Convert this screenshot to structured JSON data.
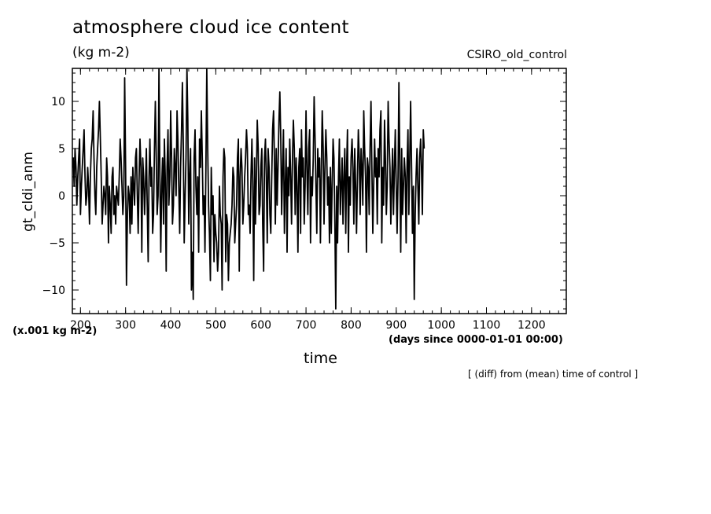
{
  "chart_data": {
    "type": "line",
    "title": "atmosphere cloud ice content",
    "units_label": "(kg m-2)",
    "source_label": "CSIRO_old_control",
    "xlabel": "time",
    "ylabel": "gt_cldi_anm",
    "y_scale_note": "(x.001 kg m-2)",
    "x_units_note": "(days since 0000-01-01 00:00)",
    "footnote": "[ (diff) from (mean) time of control ]",
    "xlim": [
      182,
      1277
    ],
    "ylim": [
      -12.5,
      13.5
    ],
    "xticks": [
      200,
      300,
      400,
      500,
      600,
      700,
      800,
      900,
      1000,
      1100,
      1200
    ],
    "yticks": [
      -10,
      -5,
      0,
      5,
      10
    ],
    "grid": false,
    "line_color": "#000000",
    "series": [
      {
        "x_start": 182,
        "x_step": 2,
        "values": [
          3,
          4,
          1,
          5,
          3,
          -1,
          2,
          4,
          6,
          -2,
          1,
          3,
          5,
          7,
          2,
          -1,
          0,
          3,
          1,
          -3,
          2,
          5,
          6,
          9,
          4,
          0,
          -2,
          3,
          5,
          7,
          10,
          6,
          2,
          -3,
          -1,
          1,
          0,
          -2,
          4,
          2,
          -5,
          1,
          -1,
          -4,
          2,
          3,
          -2,
          0,
          -3,
          1,
          0,
          -1,
          2,
          6,
          4,
          1,
          -2,
          0,
          12.5,
          3,
          -9.5,
          -2,
          1,
          0,
          -4,
          2,
          -3,
          3,
          1,
          -1,
          4,
          5,
          0,
          -4,
          2,
          6,
          3,
          -6,
          4,
          2,
          -2,
          1,
          5,
          -1,
          -7,
          2,
          6,
          1,
          3,
          -4,
          -2,
          5,
          10,
          4,
          -2,
          0,
          13.5,
          2,
          -6,
          1,
          4,
          -3,
          6,
          2,
          -8,
          3,
          7,
          -1,
          2,
          9,
          4,
          -3,
          -1,
          5,
          3,
          0,
          9,
          6,
          1,
          -4,
          3,
          7,
          12,
          5,
          -5,
          0,
          4,
          13.5,
          8,
          -3,
          2,
          5,
          -10,
          -6,
          -11,
          4,
          7,
          1,
          -2,
          2,
          -6,
          6,
          3,
          9,
          4,
          -2,
          0,
          -6,
          3,
          13.5,
          5,
          -1,
          -4,
          -9,
          3,
          -2,
          0,
          -7,
          -2,
          -4,
          -5,
          -8,
          -6,
          1,
          -2,
          -3,
          -10,
          2,
          5,
          4,
          -7,
          -2,
          -3,
          -9,
          -5,
          -4,
          -3,
          -1,
          3,
          2,
          -5,
          -3,
          -1,
          4,
          6,
          -8,
          2,
          5,
          3,
          -3,
          -1,
          2,
          4,
          7,
          5,
          -2,
          -1,
          -4,
          2,
          6,
          1,
          -9,
          4,
          -3,
          2,
          8,
          5,
          -2,
          -1,
          3,
          5,
          -3,
          -8,
          4,
          6,
          2,
          -5,
          5,
          3,
          -2,
          -4,
          2,
          7,
          9,
          4,
          -3,
          5,
          -1,
          3,
          8,
          11,
          6,
          -2,
          3,
          7,
          -4,
          1,
          5,
          -6,
          3,
          0,
          6,
          2,
          -3,
          4,
          8,
          5,
          -2,
          4,
          1,
          -6,
          3,
          5,
          -4,
          7,
          2,
          4,
          -3,
          1,
          9,
          3,
          -2,
          5,
          7,
          -5,
          2,
          0,
          4,
          10.5,
          6,
          1,
          -4,
          5,
          2,
          4,
          -5,
          3,
          9,
          5,
          -3,
          3,
          7,
          4,
          -1,
          2,
          -5,
          3,
          -4,
          1,
          6,
          4,
          -3,
          -12,
          1,
          -5,
          2,
          6,
          -2,
          1,
          4,
          -3,
          2,
          5,
          -4,
          3,
          7,
          -6,
          2,
          -1,
          4,
          6,
          3,
          -3,
          5,
          1,
          -4,
          2,
          7,
          4,
          -2,
          5,
          3,
          -1,
          9,
          5,
          2,
          -6,
          4,
          3,
          -2,
          5,
          10,
          3,
          -4,
          1,
          6,
          2,
          4,
          -3,
          5,
          2,
          7,
          9,
          -5,
          3,
          -1,
          8,
          4,
          -2,
          1,
          10,
          6,
          3,
          -3,
          1,
          5,
          -2,
          3,
          7,
          1,
          -4,
          2,
          12,
          3,
          -6,
          5,
          -2,
          1,
          4,
          2,
          -5,
          3,
          7,
          -2,
          4,
          10,
          3,
          -4,
          1,
          -11,
          -2,
          2,
          5,
          1,
          -3,
          4,
          6,
          3,
          -2,
          7,
          5
        ]
      }
    ]
  }
}
